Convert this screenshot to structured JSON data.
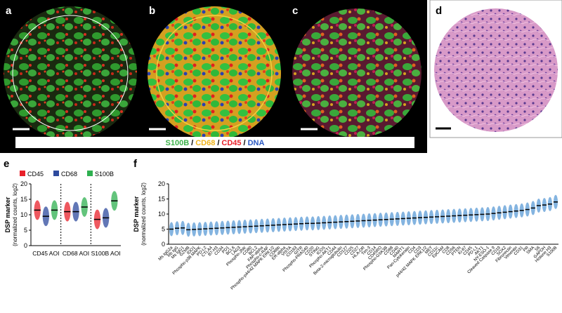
{
  "panels": {
    "a": "a",
    "b": "b",
    "c": "c",
    "d": "d",
    "e": "e",
    "f": "f"
  },
  "stain_legend": {
    "items": [
      {
        "text": "S100B",
        "color": "#3db24a"
      },
      {
        "text": "CD68",
        "color": "#f0b41c"
      },
      {
        "text": "CD45",
        "color": "#e8202a"
      },
      {
        "text": "DNA",
        "color": "#2b59c3"
      }
    ],
    "separator": "/"
  },
  "chart_data": [
    {
      "type": "strip",
      "ylabel": "DSP marker",
      "ylabel_sub": "(normalized counts, log2)",
      "categories": [
        "CD45 AOI",
        "CD68 AOI",
        "S100B AOI"
      ],
      "series": [
        {
          "name": "CD45",
          "color": "#e8202a",
          "values": [
            11.5,
            11,
            8.5
          ]
        },
        {
          "name": "CD68",
          "color": "#2e4a9e",
          "values": [
            9.5,
            11,
            9
          ]
        },
        {
          "name": "S100B",
          "color": "#2fb050",
          "values": [
            11.5,
            12.5,
            14.5
          ]
        }
      ],
      "ylim": [
        0,
        20
      ],
      "yticks": [
        0,
        5,
        10,
        15,
        20
      ],
      "legend": "top"
    },
    {
      "type": "strip",
      "ylabel": "DSP marker",
      "ylabel_sub": "(normalized counts, log2)",
      "categories": [
        "Ms IgG2a",
        "Rb IgG",
        "Ms IgG1",
        "GZMB",
        "IDO1",
        "Phospho-p38 MAPK",
        "PD-L2",
        "CTLA4",
        "B7-H3",
        "CD34",
        "PD1",
        "BCL6",
        "LAG3",
        "Phospho-JNK",
        "CD80",
        "BCL2",
        "FAP-alpha",
        "Phospho-c-RAF",
        "Phospho-p44/42 MAPK ERK1/2",
        "CD66b",
        "ER-alpha",
        "VISTA",
        "CD163",
        "GITR",
        "Phospho-PRAS40",
        "CD20",
        "STING",
        "ICOS",
        "Phospho-AKT1",
        "CD44",
        "Beta-2-microglobulin",
        "CD127",
        "CD25",
        "CD27",
        "HLA-DR",
        "Tim-3",
        "CD14",
        "CD45RO",
        "Phospho-GSK3B",
        "CD68",
        "CD40",
        "MART1",
        "Pan-Cytokeratin",
        "CD4",
        "CD3",
        "p44/42 MAPK ERK1/2",
        "MET",
        "CD11c",
        "EpCAM",
        "CD8",
        "CD56",
        "PTEN",
        "Ki-67",
        "CD45",
        "PD-L1",
        "AKT1",
        "NY-ESO-1",
        "Cleaved Caspase 9",
        "CD19",
        "SOX2",
        "Fibronectin",
        "Vimentin",
        "CD31",
        "PR",
        "SMA",
        "S6",
        "GAPDH",
        "Histone H3",
        "S100B"
      ],
      "series": [
        {
          "color": "#5b9bd5",
          "values": [
            5.0,
            5.3,
            5.4,
            4.8,
            4.9,
            5.0,
            5.1,
            5.2,
            5.3,
            5.4,
            5.5,
            5.6,
            5.7,
            5.8,
            5.9,
            6.0,
            6.1,
            6.2,
            6.3,
            6.4,
            6.5,
            6.6,
            6.7,
            6.8,
            6.9,
            6.9,
            7.0,
            7.1,
            7.2,
            7.3,
            7.4,
            7.5,
            7.6,
            7.7,
            7.8,
            7.9,
            8.0,
            8.1,
            8.2,
            8.3,
            8.4,
            8.5,
            8.6,
            8.7,
            8.8,
            8.9,
            9.0,
            9.1,
            9.2,
            9.3,
            9.4,
            9.5,
            9.6,
            9.7,
            9.8,
            9.9,
            10.0,
            10.2,
            10.4,
            10.6,
            10.8,
            11.0,
            11.2,
            11.5,
            12.0,
            12.8,
            13.0,
            13.3,
            14.0
          ]
        }
      ],
      "ylim": [
        0,
        20
      ],
      "yticks": [
        0,
        5,
        10,
        15,
        20
      ]
    }
  ]
}
